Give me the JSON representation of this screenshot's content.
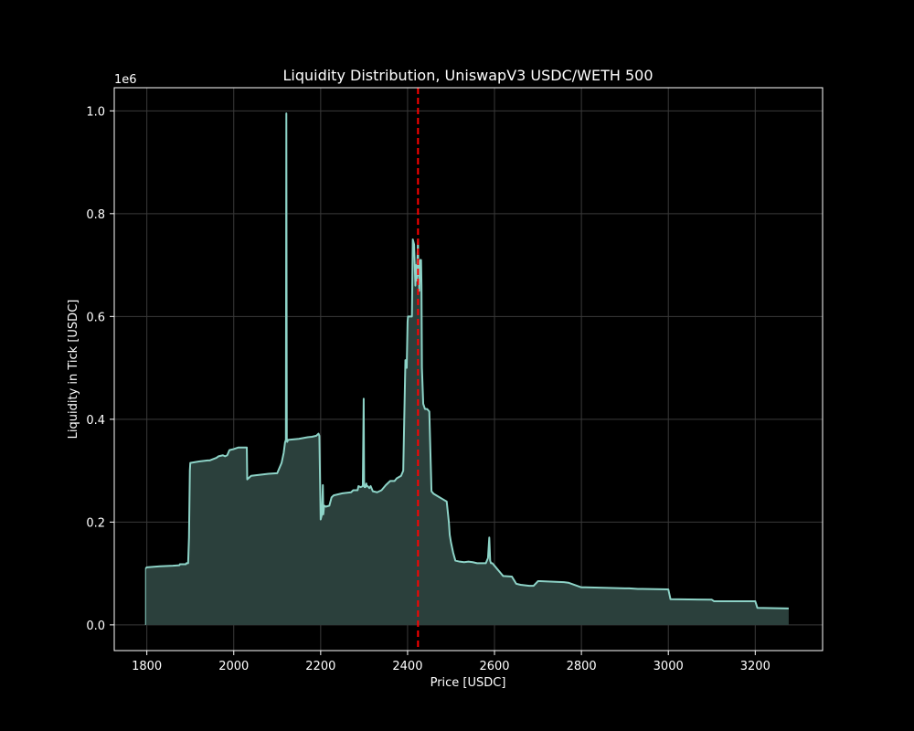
{
  "chart_data": {
    "type": "area",
    "title": "Liquidity Distribution, UniswapV3 USDC/WETH 500",
    "xlabel": "Price [USDC]",
    "ylabel": "Liquidity in Tick [USDC]",
    "y_offset_label": "1e6",
    "xlim": [
      1725,
      3355
    ],
    "ylim": [
      -0.05,
      1.045
    ],
    "x_ticks": [
      1800,
      2000,
      2200,
      2400,
      2600,
      2800,
      3000,
      3200
    ],
    "y_ticks": [
      0.0,
      0.2,
      0.4,
      0.6,
      0.8,
      1.0
    ],
    "y_tick_labels": [
      "0.0",
      "0.2",
      "0.4",
      "0.6",
      "0.8",
      "1.0"
    ],
    "grid": true,
    "current_price": 2424,
    "colors": {
      "background": "#000000",
      "line": "#8dd3c7",
      "fill": "#2b403c",
      "current_price_line": "#ff0000",
      "text": "#ffffff",
      "grid": "#3a3a3a"
    },
    "series": [
      {
        "x": [
          1797,
          1800,
          1830,
          1860,
          1875,
          1876,
          1885,
          1890,
          1891,
          1895,
          1897,
          1899,
          1900,
          1920,
          1940,
          1945,
          1960,
          1965,
          1975,
          1980,
          1985,
          1990,
          2000,
          2010,
          2030,
          2031,
          2040,
          2060,
          2080,
          2100,
          2105,
          2110,
          2115,
          2118,
          2120,
          2121,
          2122,
          2123,
          2125,
          2150,
          2170,
          2180,
          2190,
          2195,
          2197,
          2200,
          2203,
          2205,
          2206,
          2208,
          2212,
          2220,
          2225,
          2230,
          2250,
          2270,
          2275,
          2285,
          2287,
          2292,
          2297,
          2299,
          2300,
          2301,
          2303,
          2305,
          2306,
          2308,
          2312,
          2315,
          2320,
          2330,
          2340,
          2350,
          2360,
          2370,
          2375,
          2385,
          2390,
          2395,
          2398,
          2400,
          2401,
          2405,
          2410,
          2412,
          2415,
          2418,
          2419,
          2421,
          2423,
          2424,
          2425,
          2426,
          2427,
          2429,
          2431,
          2432,
          2433,
          2436,
          2440,
          2445,
          2450,
          2455,
          2460,
          2470,
          2480,
          2490,
          2495,
          2497,
          2500,
          2505,
          2510,
          2520,
          2530,
          2540,
          2550,
          2560,
          2570,
          2580,
          2585,
          2588,
          2590,
          2592,
          2595,
          2600,
          2615,
          2620,
          2640,
          2650,
          2660,
          2680,
          2690,
          2700,
          2705,
          2760,
          2770,
          2800,
          2810,
          2900,
          2910,
          2930,
          2940,
          3000,
          3005,
          3100,
          3105,
          3200,
          3205,
          3277
        ],
        "y": [
          0.11,
          0.112,
          0.114,
          0.115,
          0.116,
          0.118,
          0.118,
          0.118,
          0.12,
          0.12,
          0.17,
          0.3,
          0.315,
          0.318,
          0.32,
          0.32,
          0.325,
          0.328,
          0.33,
          0.328,
          0.33,
          0.34,
          0.342,
          0.345,
          0.345,
          0.283,
          0.29,
          0.292,
          0.294,
          0.295,
          0.305,
          0.315,
          0.335,
          0.355,
          0.36,
          0.995,
          0.36,
          0.356,
          0.36,
          0.362,
          0.365,
          0.366,
          0.368,
          0.372,
          0.368,
          0.205,
          0.215,
          0.272,
          0.215,
          0.232,
          0.23,
          0.232,
          0.248,
          0.252,
          0.256,
          0.258,
          0.262,
          0.262,
          0.27,
          0.268,
          0.27,
          0.44,
          0.27,
          0.268,
          0.268,
          0.275,
          0.27,
          0.27,
          0.266,
          0.27,
          0.26,
          0.258,
          0.262,
          0.272,
          0.28,
          0.28,
          0.285,
          0.29,
          0.3,
          0.515,
          0.5,
          0.59,
          0.6,
          0.6,
          0.6,
          0.75,
          0.74,
          0.66,
          0.7,
          0.67,
          0.72,
          0.75,
          0.68,
          0.7,
          0.65,
          0.71,
          0.71,
          0.66,
          0.5,
          0.43,
          0.42,
          0.42,
          0.415,
          0.26,
          0.255,
          0.25,
          0.245,
          0.24,
          0.2,
          0.175,
          0.16,
          0.14,
          0.125,
          0.123,
          0.122,
          0.123,
          0.122,
          0.12,
          0.12,
          0.12,
          0.13,
          0.17,
          0.125,
          0.12,
          0.12,
          0.115,
          0.1,
          0.095,
          0.094,
          0.08,
          0.078,
          0.076,
          0.076,
          0.085,
          0.085,
          0.083,
          0.082,
          0.073,
          0.073,
          0.071,
          0.071,
          0.07,
          0.07,
          0.069,
          0.05,
          0.049,
          0.046,
          0.046,
          0.033,
          0.032
        ]
      }
    ]
  }
}
